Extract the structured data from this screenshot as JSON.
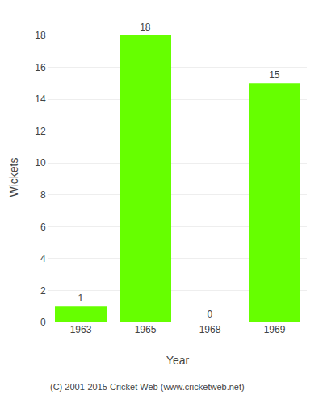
{
  "chart_data": {
    "type": "bar",
    "categories": [
      "1963",
      "1965",
      "1968",
      "1969"
    ],
    "values": [
      1,
      18,
      0,
      15
    ],
    "color": "#66ff00",
    "xlabel": "Year",
    "ylabel": "Wickets",
    "ylim": [
      0,
      18.2
    ],
    "yticks": [
      0,
      2,
      4,
      6,
      8,
      10,
      12,
      14,
      16,
      18
    ],
    "grid": true,
    "data_labels": true,
    "annotations": [
      "(C) 2001-2015 Cricket Web (www.cricketweb.net)"
    ]
  }
}
